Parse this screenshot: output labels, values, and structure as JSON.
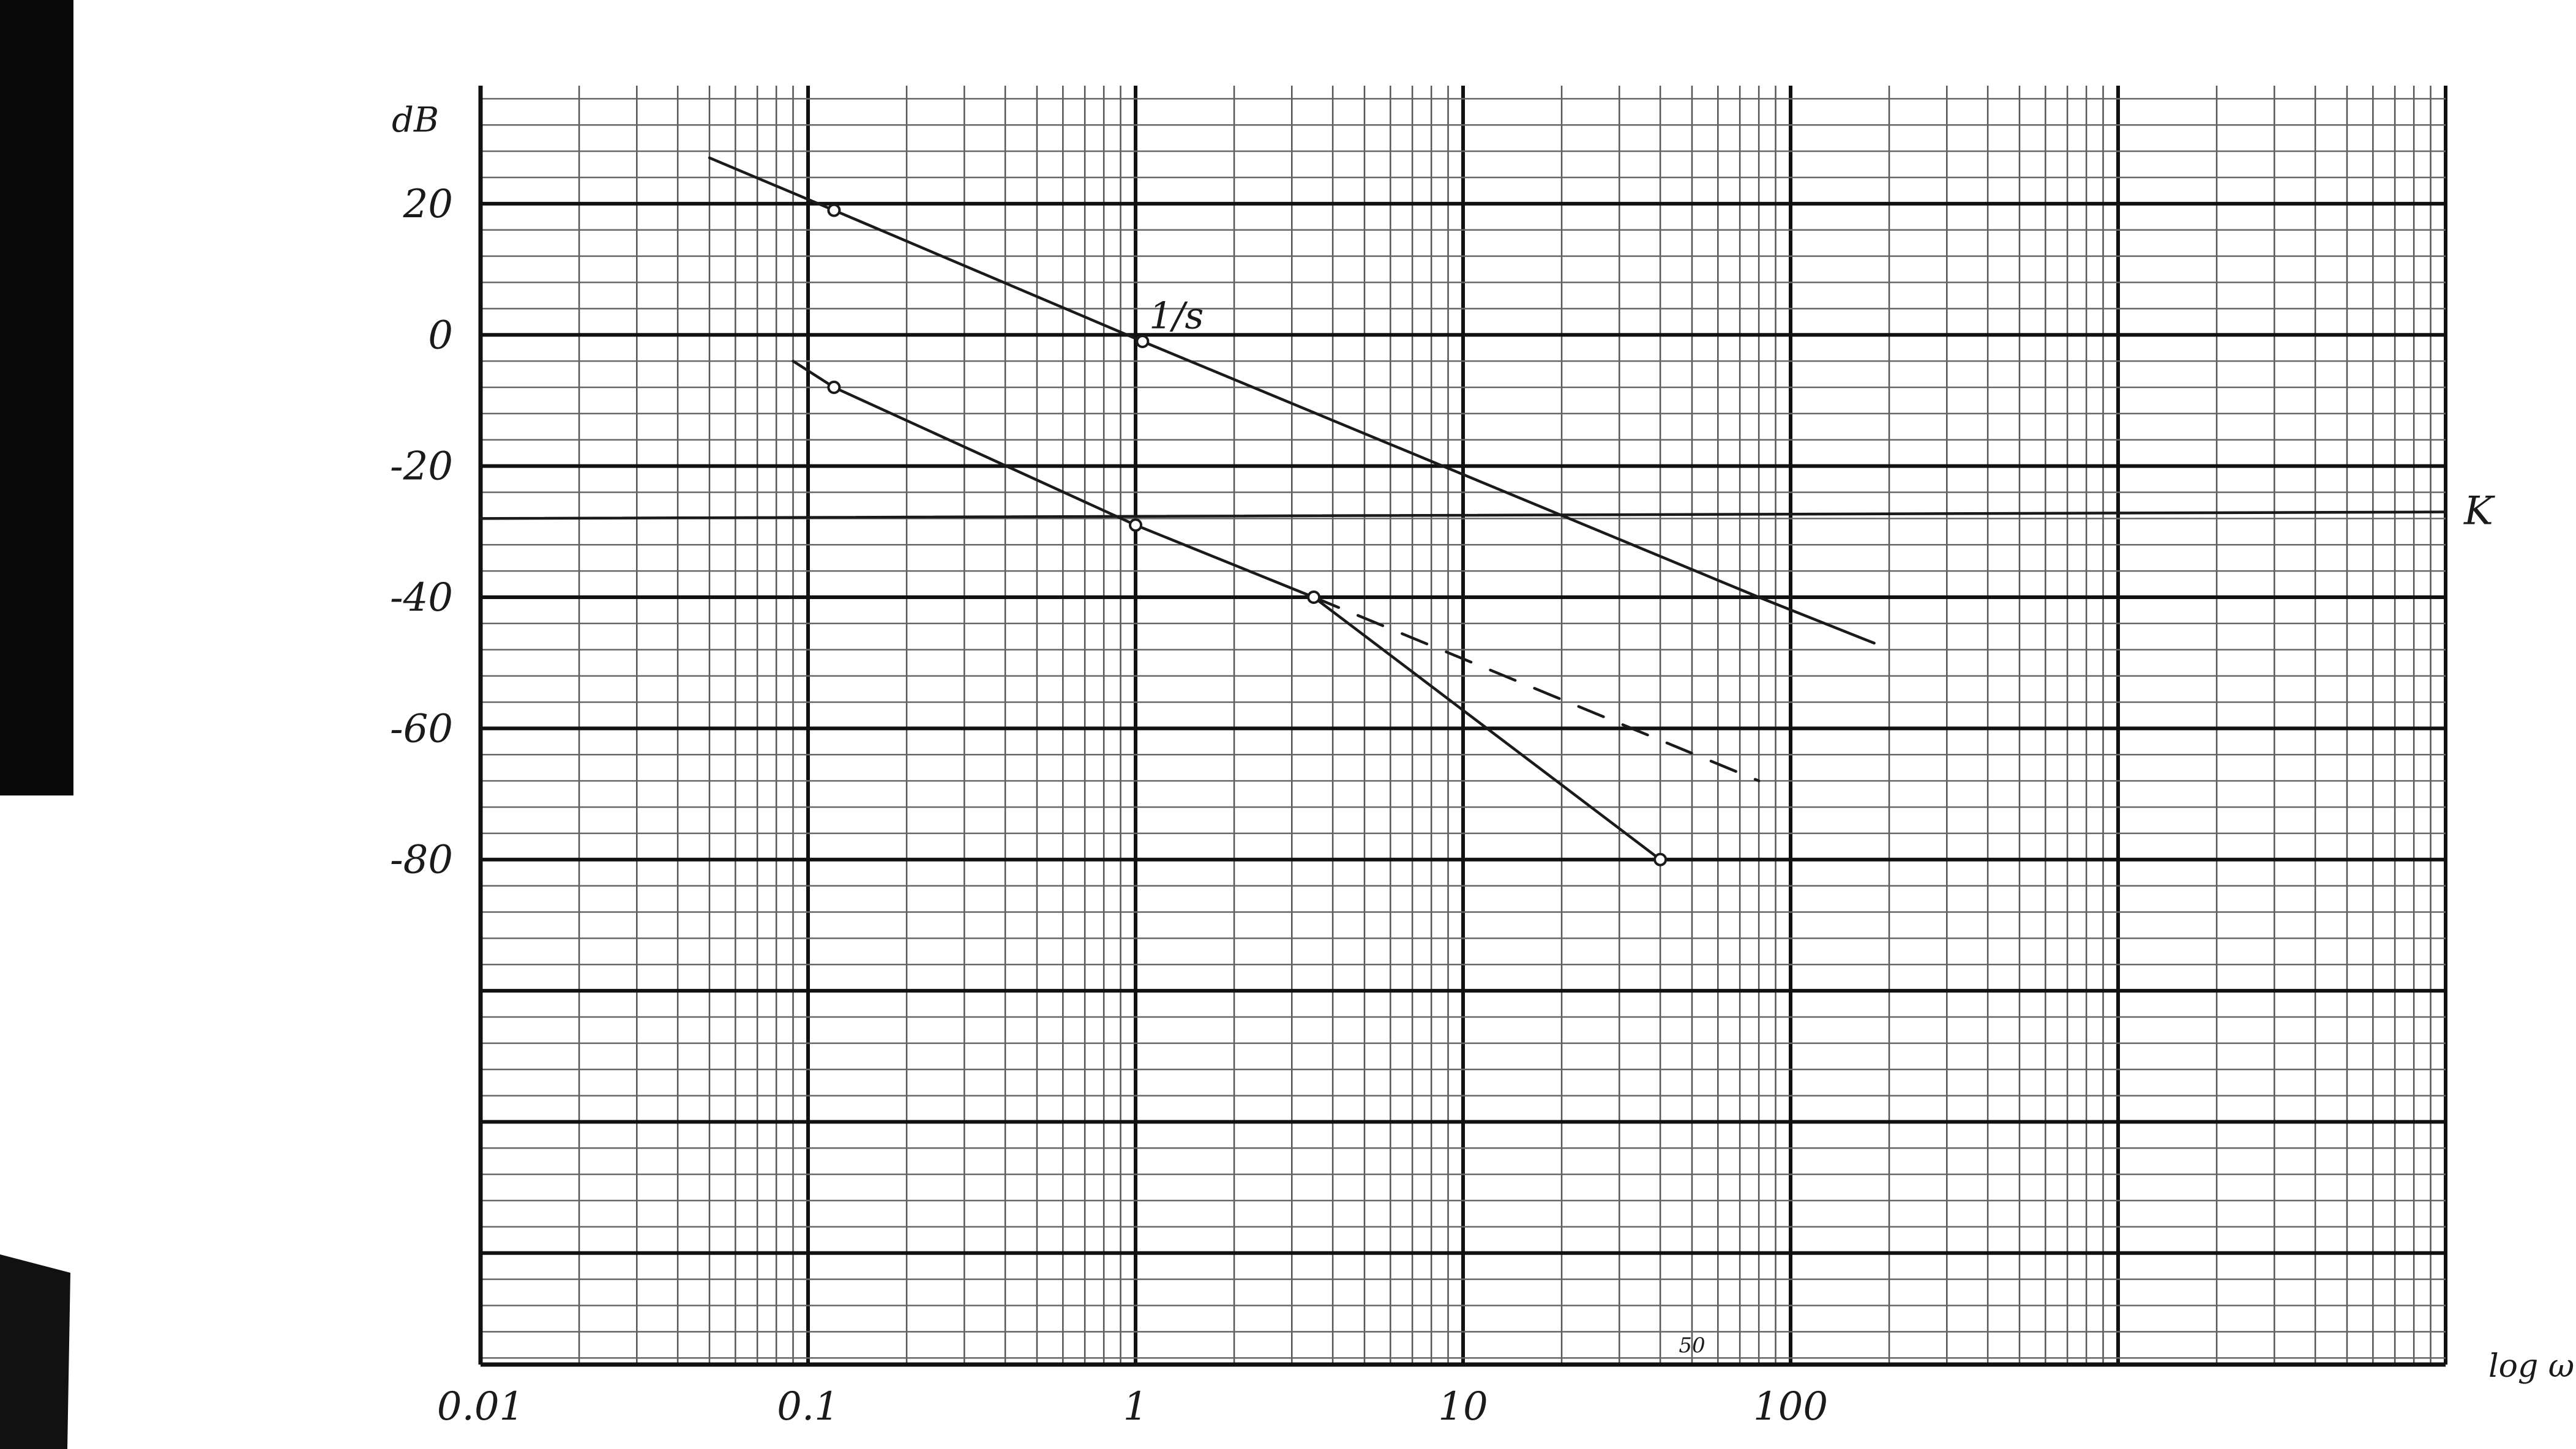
{
  "chart_data": {
    "type": "line",
    "title": "",
    "xscale": "log",
    "xlim": [
      0.01,
      10000
    ],
    "ylim": [
      -157,
      38
    ],
    "xlabel": "log ω",
    "ylabel": "dB",
    "grid": true,
    "legend": "none",
    "x_ticks": [
      {
        "value": 0.01,
        "label": "0.01"
      },
      {
        "value": 0.1,
        "label": "0.1"
      },
      {
        "value": 1,
        "label": "1"
      },
      {
        "value": 10,
        "label": "10"
      },
      {
        "value": 100,
        "label": "100"
      }
    ],
    "y_ticks": [
      {
        "value": 20,
        "label": "20"
      },
      {
        "value": 0,
        "label": "0"
      },
      {
        "value": -20,
        "label": "-20"
      },
      {
        "value": -40,
        "label": "-40"
      },
      {
        "value": -60,
        "label": "-60"
      },
      {
        "value": -80,
        "label": "-80"
      }
    ],
    "series": [
      {
        "style": "solid",
        "points": [
          [
            0.05,
            27
          ],
          [
            0.12,
            19
          ],
          [
            1.05,
            -1
          ],
          [
            80,
            -40
          ],
          [
            180,
            -47
          ]
        ]
      },
      {
        "style": "solid",
        "points": [
          [
            0.09,
            -4
          ],
          [
            0.12,
            -8
          ],
          [
            1.0,
            -29
          ],
          [
            3.5,
            -40
          ],
          [
            40,
            -80
          ]
        ]
      },
      {
        "style": "dashed",
        "points": [
          [
            3.5,
            -40
          ],
          [
            80,
            -68
          ]
        ]
      },
      {
        "style": "solid",
        "points": [
          [
            0.01,
            -28
          ],
          [
            10000,
            -27
          ]
        ]
      }
    ],
    "markers": [
      {
        "x": 0.12,
        "y": 19
      },
      {
        "x": 1.05,
        "y": -1
      },
      {
        "x": 0.12,
        "y": -8
      },
      {
        "x": 1.0,
        "y": -29
      },
      {
        "x": 3.5,
        "y": -40
      },
      {
        "x": 40,
        "y": -80
      }
    ],
    "annotations": [
      {
        "text": "1/s",
        "x": 1.1,
        "y": 1
      },
      {
        "text": "K",
        "x": 10000,
        "y": -27
      },
      {
        "text": "50",
        "x": 50,
        "y": -157
      }
    ]
  }
}
